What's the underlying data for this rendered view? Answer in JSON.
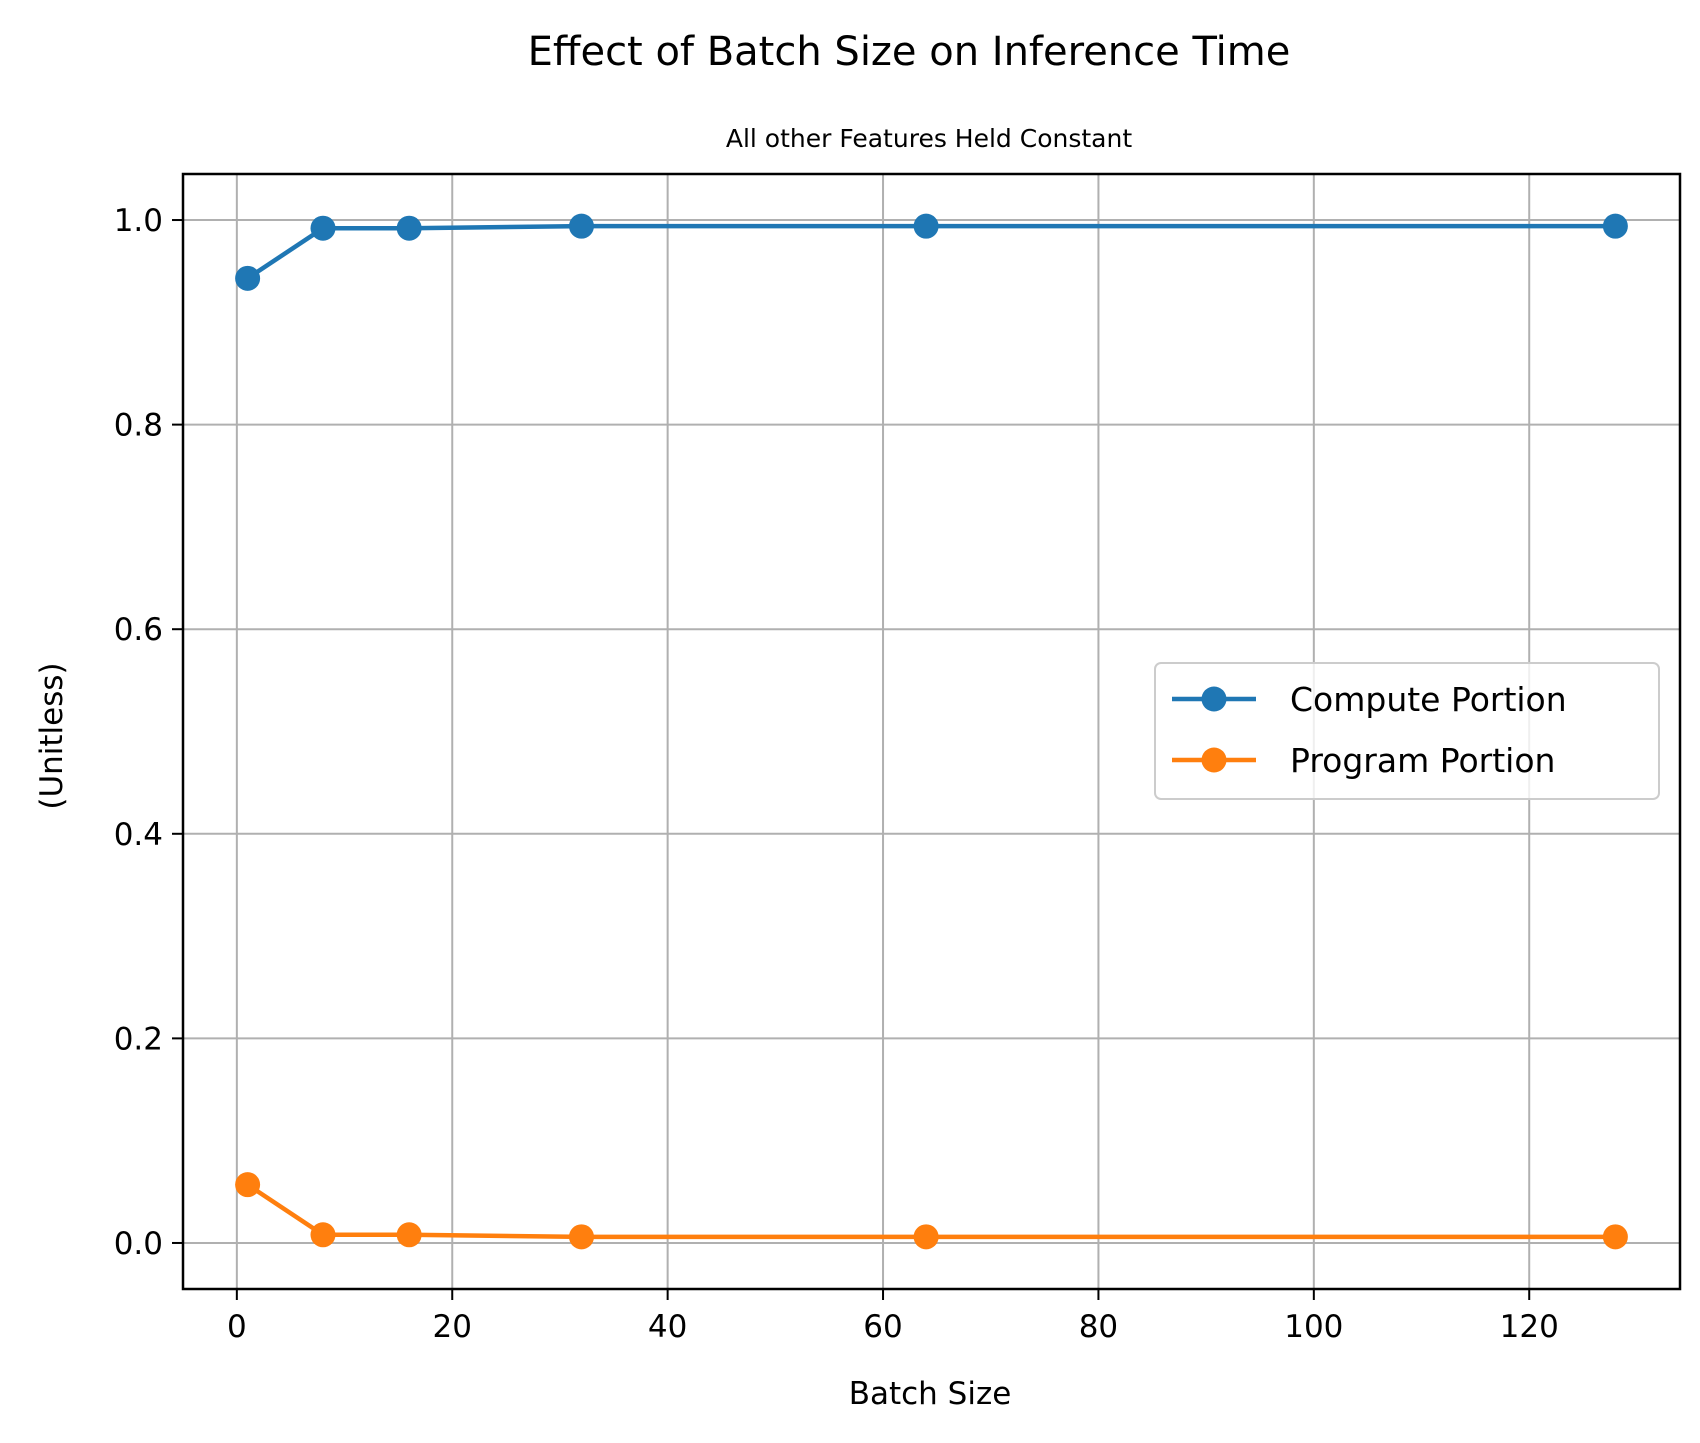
{
  "chart_data": {
    "type": "line",
    "title": "Effect of Batch Size on Inference Time",
    "subtitle": "All other Features Held Constant",
    "xlabel": "Batch Size",
    "ylabel": "(Unitless)",
    "xlim": [
      -5,
      134
    ],
    "ylim": [
      -0.045,
      1.045
    ],
    "xticks": [
      0,
      20,
      40,
      60,
      80,
      100,
      120
    ],
    "yticks": [
      0.0,
      0.2,
      0.4,
      0.6,
      0.8,
      1.0
    ],
    "xtick_labels": [
      "0",
      "20",
      "40",
      "60",
      "80",
      "100",
      "120"
    ],
    "ytick_labels": [
      "0.0",
      "0.2",
      "0.4",
      "0.6",
      "0.8",
      "1.0"
    ],
    "grid": true,
    "legend_position": "center-right",
    "x": [
      1,
      8,
      16,
      32,
      64,
      128
    ],
    "series": [
      {
        "name": "Compute Portion",
        "color": "#1f77b4",
        "marker": "circle",
        "values": [
          0.943,
          0.992,
          0.992,
          0.994,
          0.994,
          0.994
        ]
      },
      {
        "name": "Program Portion",
        "color": "#ff7f0e",
        "marker": "circle",
        "values": [
          0.057,
          0.008,
          0.008,
          0.006,
          0.006,
          0.006
        ]
      }
    ]
  }
}
